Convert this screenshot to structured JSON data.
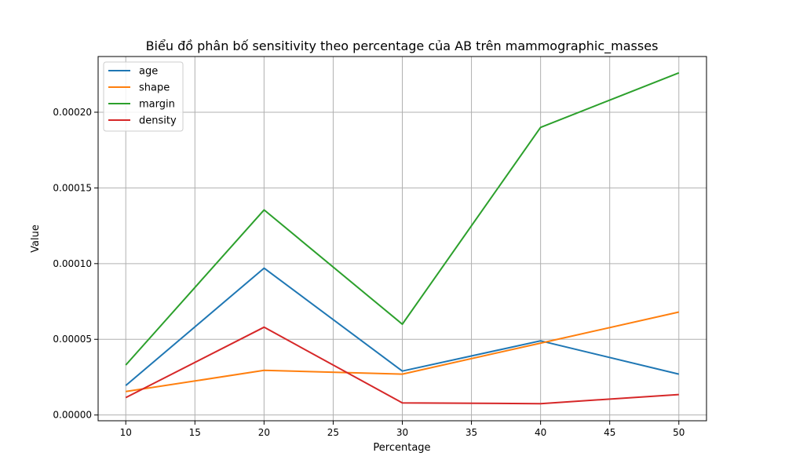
{
  "chart_data": {
    "type": "line",
    "title": "Biểu đồ phân bố sensitivity theo percentage của AB trên mammographic_masses",
    "xlabel": "Percentage",
    "ylabel": "Value",
    "x": [
      10,
      20,
      30,
      40,
      50
    ],
    "xlim": [
      8,
      52
    ],
    "ylim": [
      -3.8e-06,
      0.0002368
    ],
    "xticks": [
      10,
      15,
      20,
      25,
      30,
      35,
      40,
      45,
      50
    ],
    "yticks": [
      0.0,
      5e-05,
      0.0001,
      0.00015,
      0.0002
    ],
    "xtick_labels": [
      "10",
      "15",
      "20",
      "25",
      "30",
      "35",
      "40",
      "45",
      "50"
    ],
    "ytick_labels": [
      "0.00000",
      "0.00005",
      "0.00010",
      "0.00015",
      "0.00020"
    ],
    "grid": true,
    "legend_position": "top-left",
    "series": [
      {
        "name": "age",
        "color": "#1f77b4",
        "values": [
          1.95e-05,
          9.7e-05,
          2.9e-05,
          4.9e-05,
          2.7e-05
        ]
      },
      {
        "name": "shape",
        "color": "#ff7f0e",
        "values": [
          1.55e-05,
          2.95e-05,
          2.7e-05,
          4.75e-05,
          6.8e-05
        ]
      },
      {
        "name": "margin",
        "color": "#2ca02c",
        "values": [
          3.3e-05,
          0.0001355,
          6e-05,
          0.00019,
          0.000226
        ]
      },
      {
        "name": "density",
        "color": "#d62728",
        "values": [
          1.15e-05,
          5.8e-05,
          8e-06,
          7.5e-06,
          1.35e-05
        ]
      }
    ]
  }
}
